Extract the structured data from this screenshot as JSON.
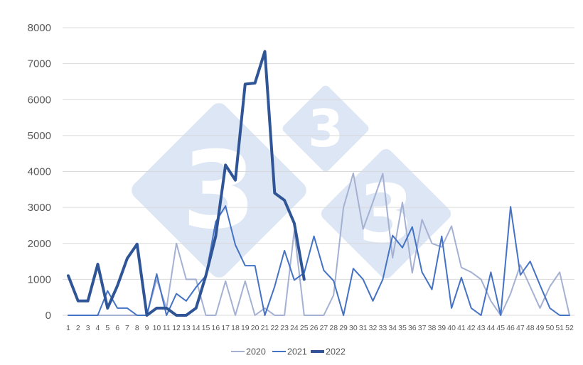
{
  "chart_data": {
    "type": "line",
    "title": "",
    "xlabel": "",
    "ylabel": "",
    "ylim": [
      0,
      8000
    ],
    "yticks": [
      0,
      1000,
      2000,
      3000,
      4000,
      5000,
      6000,
      7000,
      8000
    ],
    "grid": true,
    "legend_position": "bottom",
    "categories": [
      "1",
      "2",
      "3",
      "4",
      "5",
      "6",
      "7",
      "8",
      "9",
      "10",
      "11",
      "12",
      "13",
      "14",
      "15",
      "16",
      "17",
      "18",
      "19",
      "20",
      "21",
      "22",
      "23",
      "24",
      "25",
      "26",
      "27",
      "28",
      "29",
      "30",
      "31",
      "32",
      "33",
      "34",
      "35",
      "36",
      "37",
      "38",
      "39",
      "40",
      "41",
      "42",
      "43",
      "44",
      "45",
      "46",
      "47",
      "48",
      "49",
      "50",
      "51",
      "52"
    ],
    "series": [
      {
        "name": "2020",
        "color": "#a5b1d3",
        "width": 2,
        "values": [
          0,
          0,
          0,
          0,
          0,
          0,
          0,
          0,
          0,
          1000,
          200,
          2000,
          1000,
          1000,
          0,
          0,
          950,
          0,
          950,
          0,
          200,
          0,
          0,
          2350,
          0,
          0,
          0,
          560,
          3000,
          3950,
          2400,
          3150,
          3940,
          1600,
          3140,
          1180,
          2660,
          2000,
          1900,
          2480,
          1330,
          1200,
          1000,
          400,
          0,
          600,
          1400,
          800,
          200,
          800,
          1200,
          0
        ]
      },
      {
        "name": "2021",
        "color": "#4472c4",
        "width": 2,
        "values": [
          0,
          0,
          0,
          0,
          680,
          200,
          200,
          0,
          0,
          1150,
          0,
          600,
          400,
          780,
          1100,
          2600,
          3040,
          1960,
          1380,
          1380,
          0,
          800,
          1800,
          980,
          1180,
          2200,
          1250,
          960,
          0,
          1300,
          1000,
          400,
          1000,
          2220,
          1880,
          2460,
          1200,
          720,
          2200,
          200,
          1050,
          200,
          0,
          1200,
          0,
          3020,
          1120,
          1500,
          840,
          200,
          0,
          0
        ]
      },
      {
        "name": "2022",
        "color": "#2f5597",
        "width": 4,
        "values": [
          1100,
          400,
          400,
          1420,
          200,
          820,
          1580,
          1980,
          0,
          200,
          200,
          0,
          0,
          200,
          1100,
          2200,
          4180,
          3760,
          6430,
          6460,
          7340,
          3400,
          3200,
          2560,
          1000
        ]
      }
    ]
  },
  "watermark": {
    "digit": "3",
    "color": "#dde6f4"
  },
  "legend": {
    "items": [
      {
        "label": "2020"
      },
      {
        "label": "2021"
      },
      {
        "label": "2022"
      }
    ]
  }
}
